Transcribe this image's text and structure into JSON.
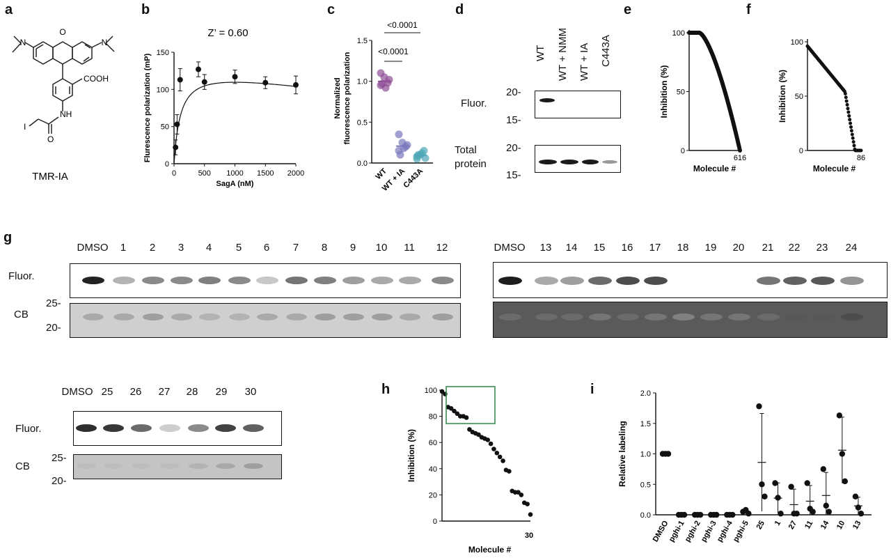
{
  "panel_letters": [
    "a",
    "b",
    "c",
    "d",
    "e",
    "f",
    "g",
    "h",
    "i"
  ],
  "panel_a": {
    "compound_name": "TMR-IA",
    "atoms": {
      "O": "O",
      "N": "N",
      "COOH": "COOH",
      "NH": "NH",
      "I": "I",
      "ketoO": "O"
    }
  },
  "colors": {
    "purple": "#8e4f96",
    "lavender": "#7b78bd",
    "teal": "#4ea8b6",
    "black": "#111111",
    "green_box": "#3d8a55"
  },
  "chart_data": [
    {
      "panel": "b",
      "type": "scatter",
      "title": "Z’ = 0.60",
      "xlabel": "SagA (nM)",
      "ylabel": "Flurescence polarization (mP)",
      "xlim": [
        0,
        2000
      ],
      "ylim": [
        0,
        150
      ],
      "xticks": [
        "0",
        "500",
        "1000",
        "1500",
        "2000"
      ],
      "yticks": [
        "0",
        "50",
        "100",
        "150"
      ],
      "x": [
        25,
        50,
        100,
        400,
        500,
        1000,
        1500,
        2000
      ],
      "y": [
        22,
        53,
        113,
        127,
        110,
        117,
        109,
        106
      ],
      "error": [
        10,
        13,
        15,
        10,
        10,
        9,
        8,
        12
      ],
      "fit_line": true
    },
    {
      "panel": "c",
      "type": "scatter",
      "ylabel": "Normalized fluorescence polarization",
      "categories": [
        "WT",
        "WT + IA",
        "C443A"
      ],
      "ylim": [
        0,
        1.5
      ],
      "yticks": [
        "0.0",
        "0.5",
        "1.0",
        "1.5"
      ],
      "series": [
        {
          "values": [
            0.95,
            1.05,
            0.98,
            1.1,
            0.92,
            1.02,
            0.97
          ]
        },
        {
          "values": [
            0.15,
            0.25,
            0.2,
            0.35,
            0.18,
            0.22,
            0.1
          ]
        },
        {
          "values": [
            0.05,
            0.1,
            0.15,
            0.08,
            0.12,
            0.06,
            0.1
          ]
        }
      ],
      "annotations": [
        "<0.0001",
        "<0.0001"
      ]
    },
    {
      "panel": "e",
      "type": "scatter",
      "xlabel": "Molecule #",
      "ylabel": "Inhibition (%)",
      "yticks": [
        "0",
        "50",
        "100"
      ],
      "x_end_label": "616",
      "n_points": 616,
      "ylim": [
        0,
        100
      ]
    },
    {
      "panel": "f",
      "type": "scatter",
      "xlabel": "Molecule #",
      "ylabel": "Inhibition (%)",
      "yticks": [
        "0",
        "50",
        "100"
      ],
      "x_end_label": "86",
      "n_points": 86,
      "ylim": [
        0,
        100
      ]
    },
    {
      "panel": "h",
      "type": "scatter",
      "xlabel": "Molecule #",
      "ylabel": "Inhibition (%)",
      "yticks": [
        "0",
        "20",
        "40",
        "60",
        "80",
        "100"
      ],
      "x_end_label": "30",
      "ylim": [
        0,
        100
      ],
      "x": [
        1,
        2,
        3,
        4,
        5,
        6,
        7,
        8,
        9,
        10,
        11,
        12,
        13,
        14,
        15,
        16,
        17,
        18,
        19,
        20,
        21,
        22,
        23,
        24,
        25,
        26,
        27,
        28,
        29,
        30
      ],
      "y": [
        99,
        97,
        87,
        86,
        84,
        82,
        80,
        80,
        79,
        70,
        68,
        67,
        66,
        64,
        63,
        62,
        59,
        55,
        52,
        49,
        46,
        39,
        38,
        23,
        22,
        22,
        20,
        14,
        13,
        5
      ],
      "highlight_box": "top-left"
    },
    {
      "panel": "i",
      "type": "scatter",
      "ylabel": "Relative labeling",
      "ylim": [
        0,
        2.0
      ],
      "yticks": [
        "0.0",
        "0.5",
        "1.0",
        "1.5",
        "2.0"
      ],
      "categories": [
        "DMSO",
        "pghi-1",
        "pghi-2",
        "pghi-3",
        "pghi-4",
        "pghi-5",
        "25",
        "1",
        "27",
        "11",
        "14",
        "10",
        "13"
      ],
      "series": [
        {
          "values": [
            1.0,
            1.0,
            1.0
          ]
        },
        {
          "values": [
            0.0,
            0.0,
            0.0
          ]
        },
        {
          "values": [
            0.0,
            0.0,
            0.0
          ]
        },
        {
          "values": [
            0.0,
            0.0,
            0.0
          ]
        },
        {
          "values": [
            0.0,
            0.0,
            0.0
          ]
        },
        {
          "values": [
            0.05,
            0.08,
            0.02
          ]
        },
        {
          "values": [
            1.78,
            0.5,
            0.3
          ]
        },
        {
          "values": [
            0.52,
            0.28,
            0.02
          ]
        },
        {
          "values": [
            0.46,
            0.02,
            0.02
          ]
        },
        {
          "values": [
            0.52,
            0.1,
            0.05
          ]
        },
        {
          "values": [
            0.75,
            0.15,
            0.05
          ]
        },
        {
          "values": [
            1.63,
            1.0,
            0.55
          ]
        },
        {
          "values": [
            0.3,
            0.12,
            0.02
          ]
        }
      ]
    }
  ],
  "panel_d": {
    "lanes": [
      "WT",
      "WT + NMM",
      "WT + IA",
      "C443A"
    ],
    "rows": [
      "Fluor.",
      "Total protein"
    ],
    "markers_top": [
      "20-",
      "15-"
    ],
    "markers_bottom": [
      "20-",
      "15-"
    ]
  },
  "panel_g": {
    "gel1": {
      "lanes": [
        "DMSO",
        "1",
        "2",
        "3",
        "4",
        "5",
        "6",
        "7",
        "8",
        "9",
        "10",
        "11",
        "12"
      ]
    },
    "gel2": {
      "lanes": [
        "DMSO",
        "13",
        "14",
        "15",
        "16",
        "17",
        "18",
        "19",
        "20",
        "21",
        "22",
        "23",
        "24"
      ]
    },
    "gel3": {
      "lanes": [
        "DMSO",
        "25",
        "26",
        "27",
        "28",
        "29",
        "30"
      ]
    },
    "row_labels": [
      "Fluor.",
      "CB"
    ],
    "markers": [
      "25-",
      "20-"
    ]
  }
}
